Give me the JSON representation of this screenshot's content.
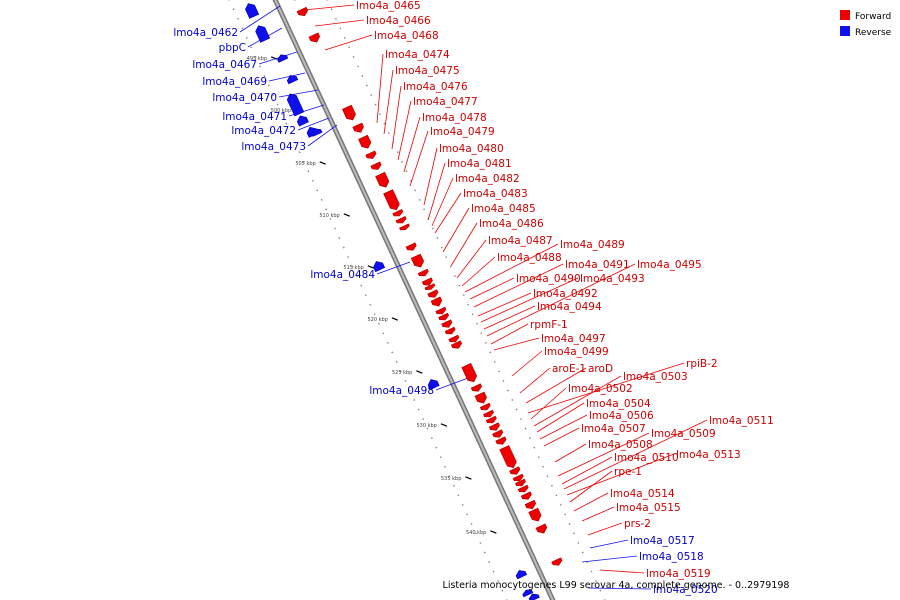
{
  "colors": {
    "forward": "#ee0000",
    "reverse": "#1010ee",
    "forward_text": "#cc0000",
    "reverse_text": "#0000cc",
    "backbone": "#999999"
  },
  "legend": {
    "forward_label": "Forward",
    "reverse_label": "Reverse"
  },
  "caption": "Listeria monocytogenes L99 serovar 4a, complete genome. - 0..2979198",
  "ticks": [
    "495 kbp",
    "500 kbp",
    "505 kbp",
    "510 kbp",
    "515 kbp",
    "520 kbp",
    "525 kbp",
    "530 kbp",
    "535 kbp",
    "540 kbp"
  ],
  "genes": [
    {
      "name": "lmo4a_0462",
      "strand": "reverse"
    },
    {
      "name": "pbpC",
      "strand": "reverse"
    },
    {
      "name": "lmo4a_0465",
      "strand": "forward"
    },
    {
      "name": "lmo4a_0466",
      "strand": "forward"
    },
    {
      "name": "lmo4a_0467",
      "strand": "reverse"
    },
    {
      "name": "lmo4a_0468",
      "strand": "forward"
    },
    {
      "name": "lmo4a_0469",
      "strand": "reverse"
    },
    {
      "name": "lmo4a_0470",
      "strand": "reverse"
    },
    {
      "name": "lmo4a_0471",
      "strand": "reverse"
    },
    {
      "name": "lmo4a_0472",
      "strand": "reverse"
    },
    {
      "name": "lmo4a_0473",
      "strand": "reverse"
    },
    {
      "name": "lmo4a_0474",
      "strand": "forward"
    },
    {
      "name": "lmo4a_0475",
      "strand": "forward"
    },
    {
      "name": "lmo4a_0476",
      "strand": "forward"
    },
    {
      "name": "lmo4a_0477",
      "strand": "forward"
    },
    {
      "name": "lmo4a_0478",
      "strand": "forward"
    },
    {
      "name": "lmo4a_0479",
      "strand": "forward"
    },
    {
      "name": "lmo4a_0480",
      "strand": "forward"
    },
    {
      "name": "lmo4a_0481",
      "strand": "forward"
    },
    {
      "name": "lmo4a_0482",
      "strand": "forward"
    },
    {
      "name": "lmo4a_0483",
      "strand": "forward"
    },
    {
      "name": "lmo4a_0484",
      "strand": "reverse"
    },
    {
      "name": "lmo4a_0485",
      "strand": "forward"
    },
    {
      "name": "lmo4a_0486",
      "strand": "forward"
    },
    {
      "name": "lmo4a_0487",
      "strand": "forward"
    },
    {
      "name": "lmo4a_0488",
      "strand": "forward"
    },
    {
      "name": "lmo4a_0489",
      "strand": "forward"
    },
    {
      "name": "lmo4a_0490",
      "strand": "forward"
    },
    {
      "name": "lmo4a_0491",
      "strand": "forward"
    },
    {
      "name": "lmo4a_0492",
      "strand": "forward"
    },
    {
      "name": "lmo4a_0493",
      "strand": "forward"
    },
    {
      "name": "lmo4a_0494",
      "strand": "forward"
    },
    {
      "name": "lmo4a_0495",
      "strand": "forward"
    },
    {
      "name": "rpmF-1",
      "strand": "forward"
    },
    {
      "name": "lmo4a_0497",
      "strand": "forward"
    },
    {
      "name": "lmo4a_0498",
      "strand": "reverse"
    },
    {
      "name": "lmo4a_0499",
      "strand": "forward"
    },
    {
      "name": "aroE-1",
      "strand": "forward"
    },
    {
      "name": "aroD",
      "strand": "forward"
    },
    {
      "name": "rpiB-2",
      "strand": "forward"
    },
    {
      "name": "lmo4a_0502",
      "strand": "forward"
    },
    {
      "name": "lmo4a_0503",
      "strand": "forward"
    },
    {
      "name": "lmo4a_0504",
      "strand": "forward"
    },
    {
      "name": "lmo4a_0506",
      "strand": "forward"
    },
    {
      "name": "lmo4a_0507",
      "strand": "forward"
    },
    {
      "name": "lmo4a_0508",
      "strand": "forward"
    },
    {
      "name": "lmo4a_0509",
      "strand": "forward"
    },
    {
      "name": "lmo4a_0510",
      "strand": "forward"
    },
    {
      "name": "lmo4a_0511",
      "strand": "forward"
    },
    {
      "name": "lmo4a_0513",
      "strand": "forward"
    },
    {
      "name": "rpe-1",
      "strand": "forward"
    },
    {
      "name": "lmo4a_0514",
      "strand": "forward"
    },
    {
      "name": "lmo4a_0515",
      "strand": "forward"
    },
    {
      "name": "prs-2",
      "strand": "forward"
    },
    {
      "name": "lmo4a_0517",
      "strand": "reverse"
    },
    {
      "name": "lmo4a_0518",
      "strand": "reverse"
    },
    {
      "name": "lmo4a_0519",
      "strand": "forward"
    },
    {
      "name": "lmo4a_0520",
      "strand": "reverse"
    }
  ]
}
